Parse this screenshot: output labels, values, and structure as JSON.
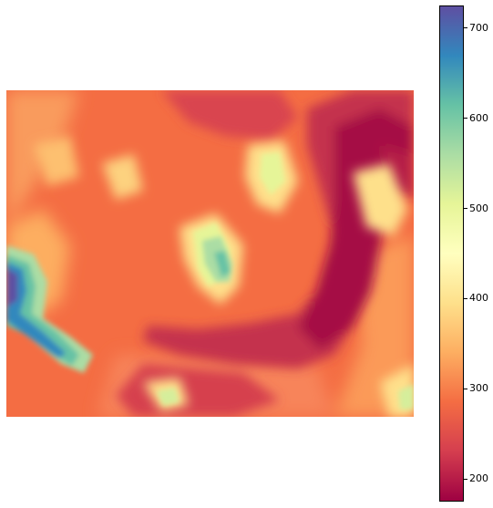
{
  "map": {
    "type": "elevation-heatmap",
    "colormap": "Spectral",
    "features": [
      "low valley (dark red) running across center-right",
      "high terrain (blue) on left edge",
      "moderate ridges (yellow-green) in center"
    ]
  },
  "chart_data": {
    "type": "heatmap",
    "title": "",
    "xlabel": "",
    "ylabel": "",
    "colorbar": {
      "min": 175,
      "max": 725,
      "ticks": [
        200,
        300,
        400,
        500,
        600,
        700
      ],
      "tick_labels": [
        "200",
        "300",
        "400",
        "500",
        "600",
        "700"
      ],
      "colors": [
        "#9e0142",
        "#d53e4f",
        "#f46d43",
        "#fdae61",
        "#fee08b",
        "#ffffbf",
        "#e6f598",
        "#abdda4",
        "#66c2a5",
        "#3288bd",
        "#5e4fa2"
      ]
    },
    "axes_visible": false
  }
}
